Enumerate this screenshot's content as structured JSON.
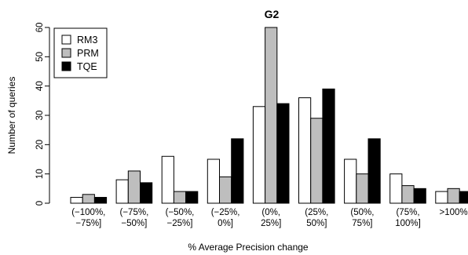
{
  "chart_data": {
    "type": "bar",
    "title": "G2",
    "xlabel": "% Average Precision change",
    "ylabel": "Number of queries",
    "ylim": [
      0,
      60
    ],
    "yticks": [
      0,
      10,
      20,
      30,
      40,
      50,
      60
    ],
    "categories": [
      [
        "(−100%,",
        "−75%]"
      ],
      [
        "(−75%,",
        "−50%]"
      ],
      [
        "(−50%,",
        "−25%]"
      ],
      [
        "(−25%,",
        "0%]"
      ],
      [
        "(0%,",
        "25%]"
      ],
      [
        "(25%,",
        "50%]"
      ],
      [
        "(50%,",
        "75%]"
      ],
      [
        "(75%,",
        "100%]"
      ],
      [
        ">100%"
      ]
    ],
    "series": [
      {
        "name": "RM3",
        "color": "#ffffff",
        "values": [
          2,
          8,
          16,
          15,
          33,
          36,
          15,
          10,
          4
        ]
      },
      {
        "name": "PRM",
        "color": "#bebebe",
        "values": [
          3,
          11,
          4,
          9,
          60,
          29,
          10,
          6,
          5
        ]
      },
      {
        "name": "TQE",
        "color": "#000000",
        "values": [
          2,
          7,
          4,
          22,
          34,
          39,
          22,
          5,
          4
        ]
      }
    ],
    "legend_position": "top-left",
    "grid": false
  }
}
